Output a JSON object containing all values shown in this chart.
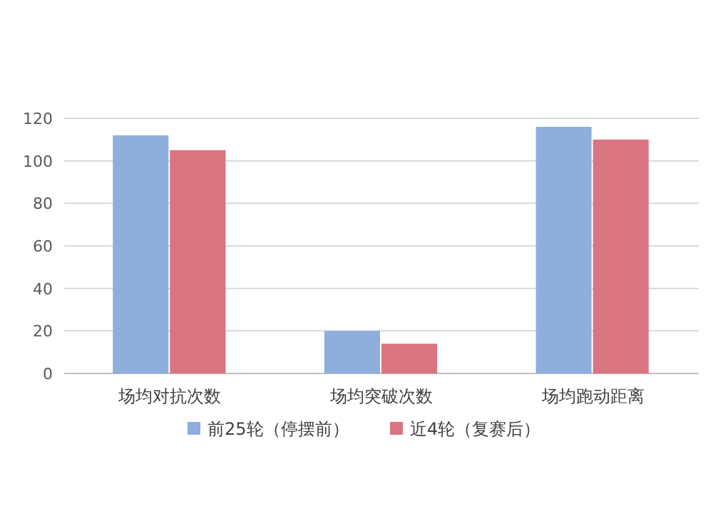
{
  "chart_data": {
    "type": "bar",
    "categories": [
      "场均对抗次数",
      "场均突破次数",
      "场均跑动距离"
    ],
    "series": [
      {
        "name": "前25轮（停摆前）",
        "color": "#8eaedb",
        "values": [
          112,
          20,
          116
        ]
      },
      {
        "name": "近4轮（复赛后）",
        "color": "#d97580",
        "values": [
          105,
          14,
          110
        ]
      }
    ],
    "ylim": [
      0,
      120
    ],
    "yticks": [
      0,
      20,
      40,
      60,
      80,
      100,
      120
    ],
    "grid": "y",
    "legend": "bottom"
  }
}
